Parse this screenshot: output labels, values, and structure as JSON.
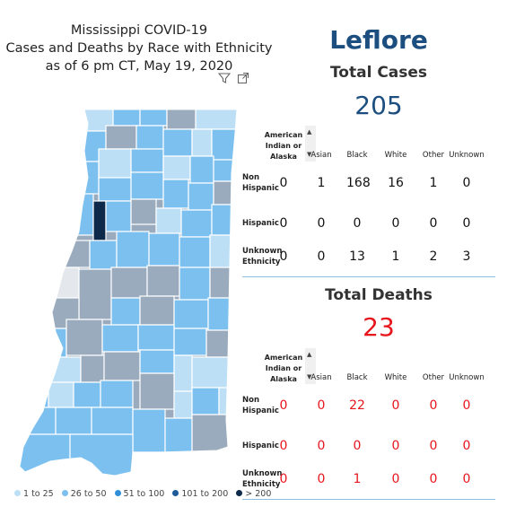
{
  "title": {
    "line1": "Mississippi COVID-19",
    "line2": "Cases and Deaths by Race with Ethnicity",
    "line3": "as of 6 pm CT, May 19, 2020"
  },
  "icons": [
    "filter-icon",
    "expand-icon",
    "sort-up-icon",
    "sort-down-icon"
  ],
  "legend": [
    {
      "label": "1 to 25",
      "color": "#bcdff5"
    },
    {
      "label": "26 to 50",
      "color": "#7cc0ef"
    },
    {
      "label": "51 to 100",
      "color": "#2f8fd8"
    },
    {
      "label": "101 to 200",
      "color": "#1c5a9a"
    },
    {
      "label": "> 200",
      "color": "#0d2a4a"
    }
  ],
  "county": "Leflore",
  "cases": {
    "title": "Total Cases",
    "total": "205",
    "color": "#1c4e80",
    "columns": [
      "American Indian or Alaska",
      "Asian",
      "Black",
      "White",
      "Other",
      "Unknown"
    ],
    "rows": [
      {
        "label": "Non Hispanic",
        "values": [
          "0",
          "1",
          "168",
          "16",
          "1",
          "0"
        ]
      },
      {
        "label": "Hispanic",
        "values": [
          "0",
          "0",
          "0",
          "0",
          "0",
          "0"
        ]
      },
      {
        "label": "Unknown Ethnicity",
        "values": [
          "0",
          "0",
          "13",
          "1",
          "2",
          "3"
        ]
      }
    ]
  },
  "deaths": {
    "title": "Total Deaths",
    "total": "23",
    "color": "#e8141c",
    "columns": [
      "American Indian or Alaska",
      "Asian",
      "Black",
      "White",
      "Other",
      "Unknown"
    ],
    "rows": [
      {
        "label": "Non Hispanic",
        "values": [
          "0",
          "0",
          "22",
          "0",
          "0",
          "0"
        ]
      },
      {
        "label": "Hispanic",
        "values": [
          "0",
          "0",
          "0",
          "0",
          "0",
          "0"
        ]
      },
      {
        "label": "Unknown Ethnicity",
        "values": [
          "0",
          "0",
          "1",
          "0",
          "0",
          "0"
        ]
      }
    ]
  },
  "colors": {
    "county_blue": "#1c4e80",
    "death_red": "#e8141c",
    "grey_county": "#9aabbd",
    "highlight_county": "#0d2a4a"
  }
}
